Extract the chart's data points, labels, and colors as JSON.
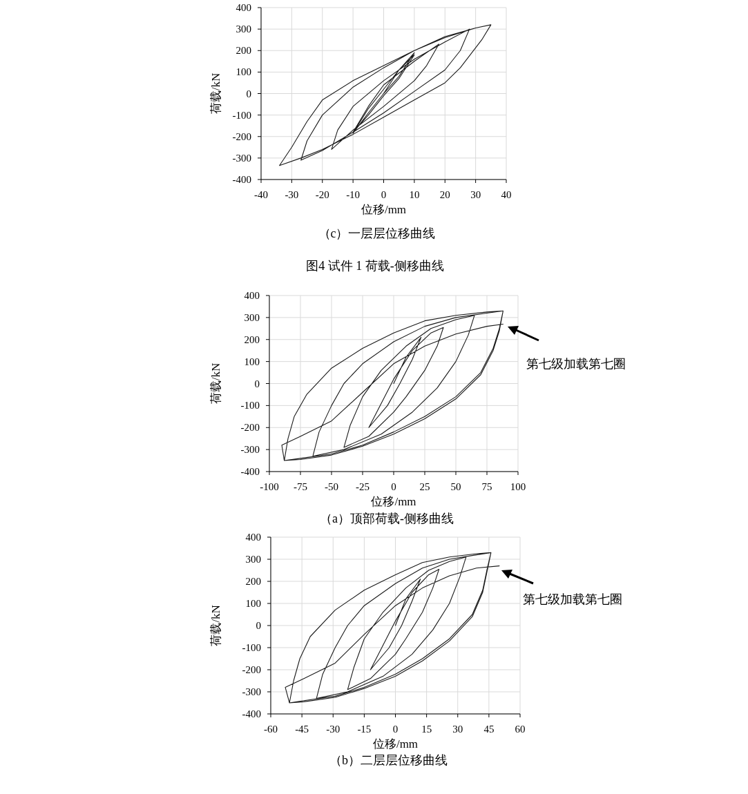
{
  "chart_data": [
    {
      "type": "line",
      "title": "（c）一层层位移曲线",
      "xlabel": "位移/mm",
      "ylabel": "荷载/kN",
      "xlim": [
        -40,
        40
      ],
      "ylim": [
        -400,
        400
      ],
      "xticks": [
        -40,
        -30,
        -20,
        -10,
        0,
        10,
        20,
        30,
        40
      ],
      "yticks": [
        -400,
        -300,
        -200,
        -100,
        0,
        100,
        200,
        300,
        400
      ],
      "grid": true,
      "marker": "none",
      "line_style": "solid",
      "series": [
        {
          "color": "#1a1a1a",
          "x": [
            0,
            5,
            10,
            5,
            0,
            -5,
            -10,
            -5,
            0,
            5,
            10,
            5,
            0,
            -5,
            -10,
            -5,
            0,
            10,
            18,
            14,
            10,
            0,
            -10,
            -17,
            -15,
            -10,
            0,
            10,
            20,
            28,
            25,
            20,
            10,
            0,
            -10,
            -20,
            -27,
            -25,
            -20,
            -10,
            0,
            10,
            20,
            30,
            35,
            32,
            25,
            20,
            10,
            0,
            -10,
            -20,
            -27,
            -34,
            -30,
            -25,
            -20,
            -10,
            0,
            10,
            20,
            30,
            35
          ],
          "values": [
            0,
            110,
            190,
            80,
            0,
            -90,
            -185,
            -70,
            20,
            110,
            180,
            70,
            -10,
            -100,
            -180,
            -60,
            40,
            150,
            230,
            130,
            60,
            -60,
            -170,
            -260,
            -170,
            -60,
            60,
            160,
            240,
            300,
            200,
            110,
            10,
            -90,
            -180,
            -265,
            -310,
            -220,
            -100,
            30,
            120,
            200,
            265,
            305,
            320,
            250,
            120,
            50,
            -30,
            -110,
            -190,
            -260,
            -300,
            -335,
            -250,
            -130,
            -30,
            60,
            130,
            200,
            260,
            305,
            320
          ]
        }
      ],
      "annotations": [
        "图4  试件 1 荷载-侧移曲线"
      ]
    },
    {
      "type": "line",
      "title": "（a）顶部荷载-侧移曲线",
      "xlabel": "位移/mm",
      "ylabel": "荷载/kN",
      "xlim": [
        -100,
        100
      ],
      "ylim": [
        -400,
        400
      ],
      "xticks": [
        -100,
        -75,
        -50,
        -25,
        0,
        25,
        50,
        75,
        100
      ],
      "yticks": [
        -400,
        -300,
        -200,
        -100,
        0,
        100,
        200,
        300,
        400
      ],
      "grid": true,
      "marker": "none",
      "line_style": "solid",
      "series": [
        {
          "color": "#1a1a1a",
          "x": [
            0,
            10,
            22,
            15,
            5,
            -5,
            -20,
            -10,
            0,
            15,
            30,
            40,
            35,
            25,
            10,
            0,
            -20,
            -40,
            -35,
            -25,
            -10,
            10,
            30,
            50,
            65,
            60,
            50,
            35,
            15,
            -10,
            -40,
            -65,
            -60,
            -50,
            -40,
            -25,
            0,
            25,
            50,
            75,
            88,
            85,
            80,
            70,
            50,
            25,
            0,
            -25,
            -50,
            -75,
            -88,
            -85,
            -80,
            -70,
            -50,
            -25,
            0,
            25,
            50,
            75,
            88,
            85,
            80,
            70,
            50,
            25,
            0,
            -25,
            -50,
            -75,
            -88,
            -90,
            -75,
            -50,
            -25,
            0,
            25,
            50,
            75,
            88
          ],
          "values": [
            0,
            120,
            210,
            110,
            0,
            -100,
            -200,
            -90,
            20,
            150,
            230,
            255,
            170,
            60,
            -60,
            -130,
            -240,
            -290,
            -190,
            -60,
            60,
            170,
            250,
            290,
            310,
            220,
            100,
            -20,
            -130,
            -230,
            -300,
            -330,
            -220,
            -100,
            0,
            90,
            190,
            260,
            300,
            320,
            330,
            250,
            160,
            50,
            -60,
            -150,
            -220,
            -280,
            -320,
            -340,
            -350,
            -250,
            -150,
            -50,
            70,
            160,
            230,
            285,
            310,
            325,
            330,
            240,
            150,
            40,
            -70,
            -160,
            -230,
            -285,
            -325,
            -345,
            -350,
            -280,
            -240,
            -170,
            -40,
            90,
            170,
            225,
            260,
            270
          ]
        }
      ],
      "annotations": [
        "第七级加载第七圈"
      ]
    },
    {
      "type": "line",
      "title": "（b）二层层位移曲线",
      "xlabel": "位移/mm",
      "ylabel": "荷载/kN",
      "xlim": [
        -60,
        60
      ],
      "ylim": [
        -400,
        400
      ],
      "xticks": [
        -60,
        -45,
        -30,
        -15,
        0,
        15,
        30,
        45,
        60
      ],
      "yticks": [
        -400,
        -300,
        -200,
        -100,
        0,
        100,
        200,
        300,
        400
      ],
      "grid": true,
      "marker": "none",
      "line_style": "solid",
      "series": [
        {
          "color": "#1a1a1a",
          "x": [
            0,
            5,
            12,
            8,
            3,
            -3,
            -12,
            -6,
            0,
            8,
            16,
            21,
            18,
            13,
            5,
            0,
            -12,
            -23,
            -20,
            -15,
            -6,
            5,
            16,
            26,
            34,
            31,
            26,
            18,
            8,
            -6,
            -23,
            -38,
            -35,
            -29,
            -23,
            -15,
            0,
            13,
            26,
            39,
            46,
            44,
            42,
            37,
            26,
            13,
            0,
            -15,
            -29,
            -44,
            -51,
            -49,
            -46,
            -41,
            -29,
            -15,
            0,
            13,
            26,
            39,
            46,
            44,
            42,
            37,
            26,
            13,
            0,
            -15,
            -29,
            -44,
            -51,
            -53,
            -44,
            -29,
            -15,
            0,
            13,
            26,
            39,
            50
          ],
          "values": [
            0,
            120,
            210,
            110,
            0,
            -100,
            -200,
            -90,
            20,
            150,
            230,
            255,
            170,
            60,
            -60,
            -130,
            -240,
            -290,
            -190,
            -60,
            60,
            170,
            250,
            290,
            310,
            220,
            100,
            -20,
            -130,
            -230,
            -300,
            -330,
            -220,
            -100,
            0,
            90,
            190,
            260,
            300,
            320,
            330,
            250,
            160,
            50,
            -60,
            -150,
            -220,
            -280,
            -320,
            -340,
            -350,
            -250,
            -150,
            -50,
            70,
            160,
            230,
            285,
            310,
            325,
            330,
            240,
            150,
            40,
            -70,
            -160,
            -230,
            -285,
            -325,
            -345,
            -350,
            -280,
            -240,
            -170,
            -40,
            90,
            170,
            225,
            260,
            270
          ]
        }
      ],
      "annotations": [
        "第七级加载第七圈"
      ]
    }
  ]
}
